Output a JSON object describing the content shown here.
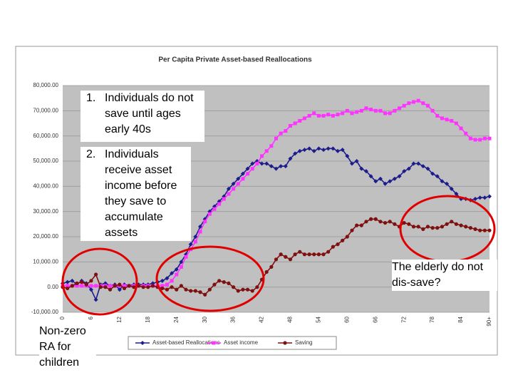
{
  "chart_data": {
    "type": "line",
    "title": "Per Capita Private Asset-based Reallocations",
    "categories": [
      "0",
      null,
      null,
      null,
      null,
      null,
      "6",
      null,
      null,
      null,
      null,
      null,
      "12",
      null,
      null,
      null,
      null,
      null,
      "18",
      null,
      null,
      null,
      null,
      null,
      "24",
      null,
      null,
      null,
      null,
      null,
      "30",
      null,
      null,
      null,
      null,
      null,
      "36",
      null,
      null,
      null,
      null,
      null,
      "42",
      null,
      null,
      null,
      null,
      null,
      "48",
      null,
      null,
      null,
      null,
      null,
      "54",
      null,
      null,
      null,
      null,
      null,
      "60",
      null,
      null,
      null,
      null,
      null,
      "66",
      null,
      null,
      null,
      null,
      null,
      "72",
      null,
      null,
      null,
      null,
      null,
      "78",
      null,
      null,
      null,
      null,
      null,
      "84",
      null,
      null,
      null,
      null,
      null,
      "90+"
    ],
    "ylim": [
      -10000,
      80000
    ],
    "yticks": [
      {
        "value": -10000,
        "label": "-10,000.00"
      },
      {
        "value": 0,
        "label": "0.00"
      },
      {
        "value": 10000,
        "label": "10,000.00"
      },
      {
        "value": 20000,
        "label": "20,000.00"
      },
      {
        "value": 30000,
        "label": "30,000.00"
      },
      {
        "value": 40000,
        "label": "40,000.00"
      },
      {
        "value": 50000,
        "label": "50,000.00"
      },
      {
        "value": 60000,
        "label": "60,000.00"
      },
      {
        "value": 70000,
        "label": "70,000.00"
      },
      {
        "value": 80000,
        "label": "80,000.00"
      }
    ],
    "grid": true,
    "legend": "bottom",
    "series": [
      {
        "name": "Asset-based Reallocations",
        "color": "#1c1c8c",
        "values": [
          1500,
          2000,
          2500,
          1000,
          2500,
          1500,
          -1000,
          -5000,
          1000,
          1500,
          500,
          1000,
          -1000,
          1000,
          500,
          1000,
          1000,
          1000,
          1000,
          1500,
          2000,
          2500,
          3500,
          5500,
          7000,
          10000,
          13000,
          17000,
          20000,
          24000,
          27000,
          30000,
          32000,
          34000,
          36000,
          39000,
          41000,
          43000,
          45000,
          47000,
          49000,
          50000,
          49000,
          49000,
          48000,
          47000,
          48000,
          48000,
          51000,
          53000,
          54000,
          54500,
          55000,
          54000,
          55000,
          54500,
          55000,
          55000,
          54000,
          54500,
          52000,
          49000,
          50000,
          47000,
          46000,
          44000,
          42000,
          43000,
          41000,
          42000,
          43000,
          44000,
          46000,
          47000,
          49000,
          49000,
          48000,
          47000,
          45000,
          44000,
          42000,
          41000,
          39000,
          37000,
          35000,
          35000,
          34500,
          35000,
          35500,
          35500,
          36000
        ]
      },
      {
        "name": "Asset income",
        "color": "#ff33ff",
        "values": [
          500,
          500,
          500,
          500,
          500,
          500,
          500,
          500,
          500,
          500,
          500,
          500,
          500,
          500,
          500,
          500,
          500,
          500,
          500,
          500,
          500,
          500,
          1000,
          2500,
          5000,
          8000,
          12000,
          15000,
          18000,
          22000,
          26000,
          29000,
          31000,
          33000,
          35000,
          37000,
          39000,
          41000,
          43000,
          45000,
          47000,
          49000,
          52000,
          54000,
          56000,
          59000,
          61000,
          62000,
          64000,
          65000,
          66000,
          67000,
          68000,
          69000,
          68000,
          68000,
          68500,
          68000,
          68500,
          69000,
          70000,
          69000,
          69500,
          70000,
          71000,
          70500,
          70000,
          70000,
          69000,
          69000,
          70000,
          71000,
          72000,
          73000,
          73500,
          74000,
          73000,
          72000,
          70000,
          68000,
          67000,
          66500,
          66000,
          65000,
          63000,
          61000,
          59000,
          58500,
          58500,
          59000,
          59000
        ]
      },
      {
        "name": "Saving",
        "color": "#7f1010",
        "values": [
          0,
          -500,
          500,
          1500,
          2000,
          1000,
          2500,
          5000,
          0,
          0,
          -1000,
          500,
          1000,
          -500,
          500,
          0,
          500,
          0,
          0,
          500,
          0,
          -500,
          -1000,
          0,
          -1000,
          500,
          -1000,
          -1500,
          -1500,
          -2000,
          -3000,
          -1000,
          1000,
          2500,
          2000,
          1500,
          0,
          -1500,
          -1000,
          -1000,
          -1500,
          0,
          3000,
          6000,
          8000,
          11000,
          13000,
          12000,
          11000,
          13000,
          14000,
          13000,
          13000,
          13000,
          13000,
          13000,
          14000,
          16000,
          17000,
          18500,
          20000,
          22500,
          24500,
          24500,
          26000,
          27000,
          27000,
          26000,
          25500,
          26000,
          25000,
          24000,
          25500,
          25000,
          24000,
          24000,
          23000,
          24000,
          23500,
          23500,
          24000,
          25000,
          26000,
          25000,
          24500,
          24000,
          23500,
          23000,
          22500,
          22500,
          22500
        ]
      }
    ]
  },
  "annotations": {
    "note1": {
      "number": "1.",
      "text": "Individuals do not save until ages early 40s"
    },
    "note2": {
      "number": "2.",
      "text": "Individuals receive asset income before they save to accumulate assets"
    },
    "elderly": "The elderly do not dis-save?",
    "children": "Non-zero RA for children"
  }
}
